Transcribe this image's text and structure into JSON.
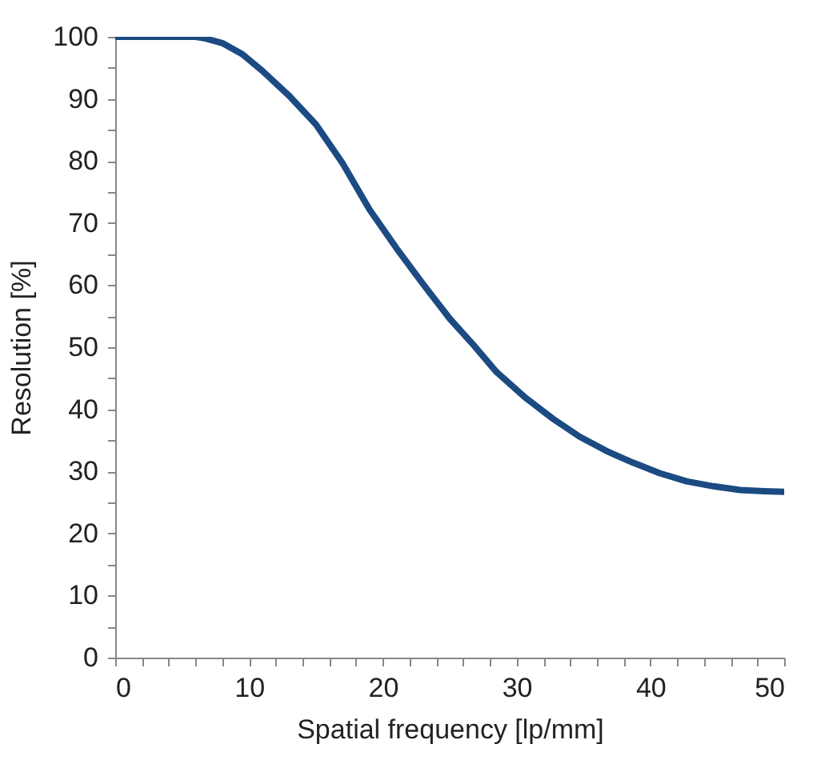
{
  "chart_data": {
    "type": "line",
    "xlabel": "Spatial frequency [lp/mm]",
    "ylabel": "Resolution [%]",
    "x": [
      0,
      3,
      6,
      6.6,
      8,
      9.5,
      11,
      13,
      15,
      17,
      19,
      21,
      23,
      25,
      26.8,
      28.5,
      30.7,
      32.7,
      34.7,
      36.7,
      38.7,
      40.7,
      42.7,
      44.7,
      46.7,
      48.5,
      50
    ],
    "series": [
      {
        "color": "#1b4b82",
        "values": [
          100,
          100,
          100,
          99.8,
          99,
          97.2,
          94.5,
          90.5,
          85.9,
          79.6,
          72.2,
          66,
          60.2,
          54.6,
          50.3,
          46,
          41.8,
          38.5,
          35.6,
          33.3,
          31.4,
          29.7,
          28.4,
          27.6,
          27,
          26.8,
          26.7
        ]
      }
    ],
    "xlim": [
      0,
      50
    ],
    "ylim": [
      0,
      100
    ],
    "xticks": [
      0,
      {
        "value": 2,
        "label": null
      },
      {
        "value": 4,
        "label": null
      },
      {
        "value": 6,
        "label": null
      },
      {
        "value": 8,
        "label": null
      },
      10,
      {
        "value": 12,
        "label": null
      },
      {
        "value": 14,
        "label": null
      },
      {
        "value": 16,
        "label": null
      },
      {
        "value": 18,
        "label": null
      },
      20,
      {
        "value": 22,
        "label": null
      },
      {
        "value": 24,
        "label": null
      },
      {
        "value": 26,
        "label": null
      },
      {
        "value": 28,
        "label": null
      },
      30,
      {
        "value": 32,
        "label": null
      },
      {
        "value": 34,
        "label": null
      },
      {
        "value": 36,
        "label": null
      },
      {
        "value": 38,
        "label": null
      },
      40,
      {
        "value": 42,
        "label": null
      },
      {
        "value": 44,
        "label": null
      },
      {
        "value": 46,
        "label": null
      },
      {
        "value": 48,
        "label": null
      },
      50
    ],
    "yticks": [
      0,
      {
        "value": 5,
        "label": null
      },
      10,
      {
        "value": 15,
        "label": null
      },
      20,
      {
        "value": 25,
        "label": null
      },
      30,
      {
        "value": 35,
        "label": null
      },
      40,
      {
        "value": 45,
        "label": null
      },
      50,
      {
        "value": 55,
        "label": null
      },
      60,
      {
        "value": 65,
        "label": null
      },
      70,
      {
        "value": 75,
        "label": null
      },
      80,
      {
        "value": 85,
        "label": null
      },
      90,
      {
        "value": 95,
        "label": null
      },
      100
    ],
    "grid": false,
    "legend": false,
    "marker": "none",
    "line_style": "solid"
  }
}
